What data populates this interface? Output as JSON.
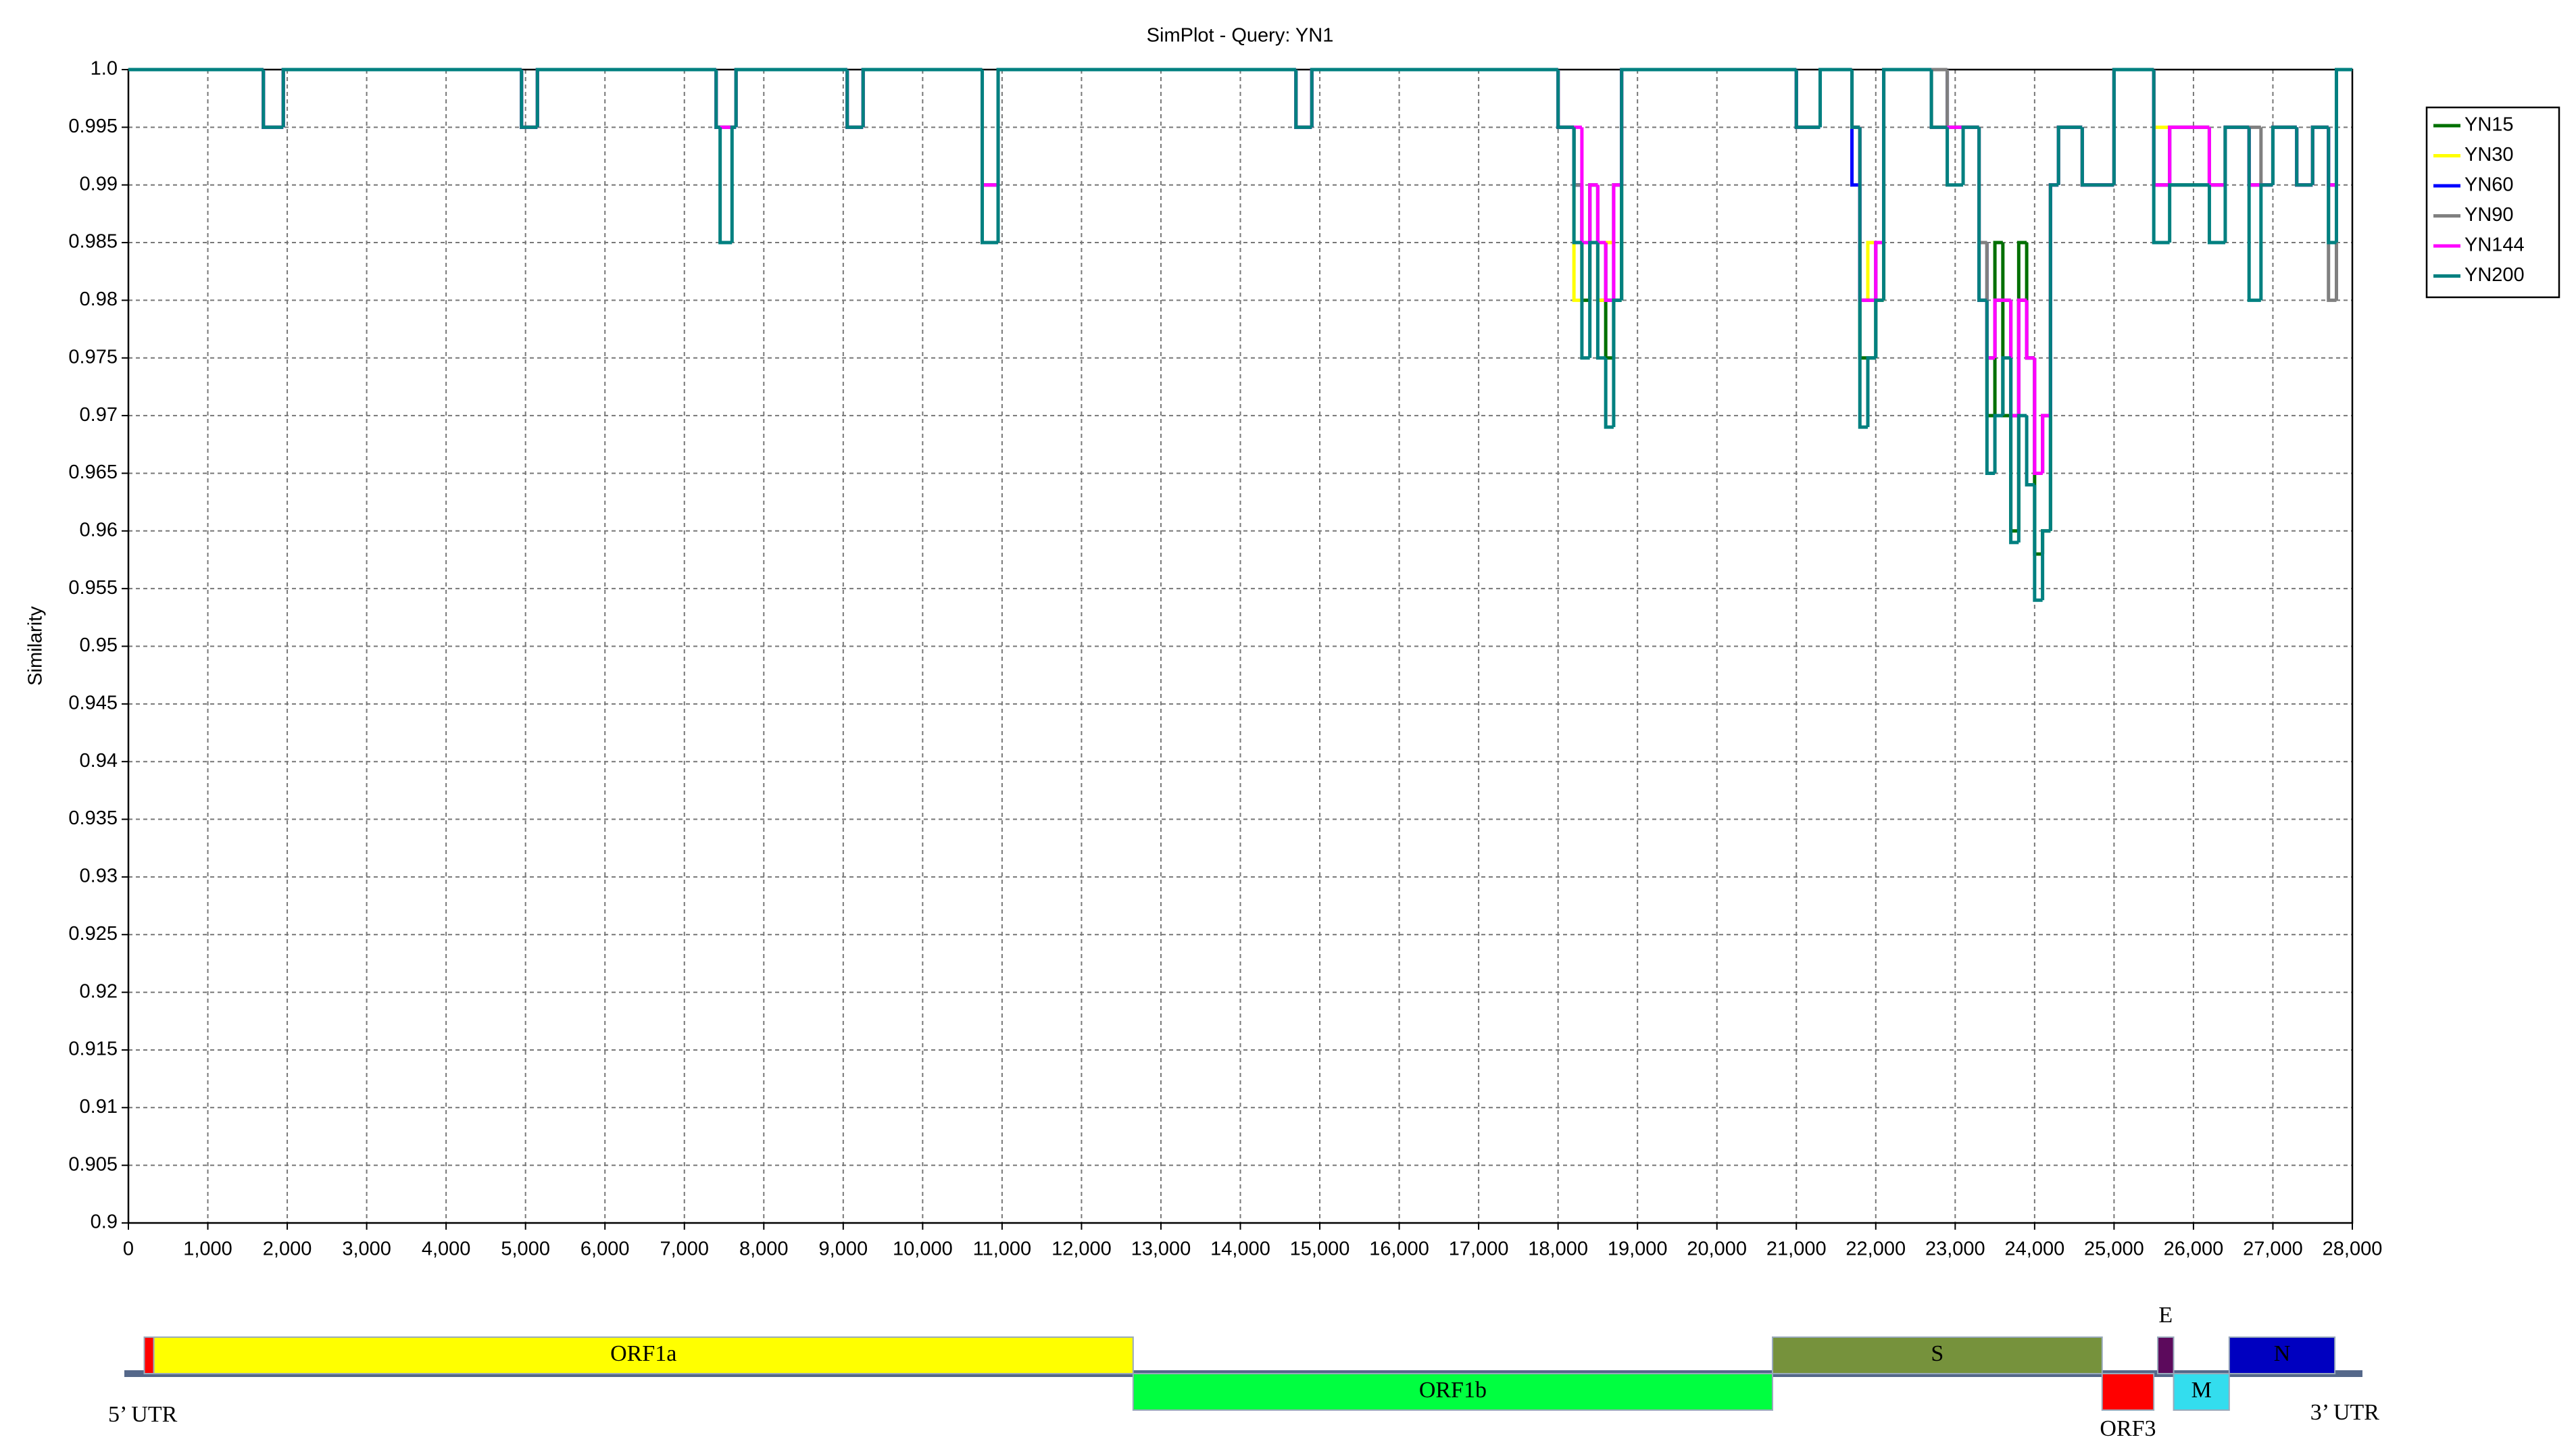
{
  "chart_data": {
    "type": "line",
    "step": true,
    "title": "SimPlot - Query: YN1",
    "y_label": "Similarity",
    "x": [
      0,
      1700,
      1950,
      4950,
      5150,
      7400,
      7450,
      7600,
      7650,
      9050,
      9250,
      10750,
      10950,
      14700,
      14900,
      18000,
      18200,
      18300,
      18400,
      18500,
      18600,
      18700,
      18800,
      21000,
      21300,
      21700,
      21800,
      21900,
      22000,
      22100,
      22700,
      22900,
      23100,
      23300,
      23400,
      23500,
      23600,
      23700,
      23800,
      23900,
      24000,
      24100,
      24200,
      24300,
      24600,
      25000,
      25500,
      25700,
      26200,
      26400,
      26700,
      26850,
      27000,
      27300,
      27500,
      27700,
      27800,
      28000
    ],
    "series": [
      {
        "name": "YN15",
        "color": "#007000",
        "values": [
          1,
          0.995,
          1,
          0.995,
          1,
          0.995,
          0.995,
          0.995,
          1,
          0.995,
          1,
          0.985,
          1,
          0.995,
          1,
          0.995,
          0.99,
          0.98,
          0.985,
          0.98,
          0.975,
          0.98,
          1,
          0.995,
          1,
          0.995,
          0.975,
          0.975,
          0.98,
          1,
          0.995,
          0.995,
          0.995,
          0.98,
          0.97,
          0.985,
          0.97,
          0.96,
          0.985,
          0.975,
          0.958,
          0.96,
          0.99,
          0.995,
          0.99,
          1,
          0.99,
          0.99,
          0.99,
          0.995,
          0.99,
          0.99,
          0.995,
          0.99,
          0.995,
          0.99,
          1,
          1
        ]
      },
      {
        "name": "YN30",
        "color": "#ffff00",
        "values": [
          1,
          0.995,
          1,
          0.995,
          1,
          0.995,
          0.995,
          0.995,
          1,
          0.995,
          1,
          0.99,
          1,
          0.995,
          1,
          0.995,
          0.98,
          0.985,
          0.99,
          0.98,
          0.985,
          0.99,
          1,
          0.995,
          1,
          0.995,
          0.98,
          0.985,
          0.98,
          1,
          0.995,
          0.995,
          0.995,
          0.985,
          0.975,
          0.98,
          0.98,
          0.97,
          0.98,
          0.975,
          0.965,
          0.97,
          0.99,
          0.995,
          0.99,
          1,
          0.995,
          0.995,
          0.99,
          0.995,
          0.99,
          0.99,
          0.995,
          0.99,
          0.995,
          0.99,
          1,
          1
        ]
      },
      {
        "name": "YN60",
        "color": "#0000ff",
        "values": [
          1,
          0.995,
          1,
          0.995,
          1,
          0.995,
          0.995,
          0.995,
          1,
          0.995,
          1,
          0.99,
          1,
          0.995,
          1,
          0.995,
          0.99,
          0.985,
          0.99,
          0.985,
          0.98,
          0.99,
          1,
          0.995,
          1,
          0.99,
          0.98,
          0.98,
          0.985,
          1,
          1,
          0.995,
          0.995,
          0.985,
          0.975,
          0.98,
          0.98,
          0.97,
          0.98,
          0.975,
          0.965,
          0.97,
          0.99,
          0.995,
          0.99,
          1,
          0.99,
          0.995,
          0.99,
          0.995,
          0.99,
          0.99,
          0.995,
          0.99,
          0.995,
          0.99,
          1,
          1
        ]
      },
      {
        "name": "YN90",
        "color": "#808080",
        "values": [
          1,
          0.995,
          1,
          0.995,
          1,
          0.995,
          0.995,
          0.995,
          1,
          0.995,
          1,
          0.99,
          1,
          0.995,
          1,
          0.995,
          0.99,
          0.985,
          0.99,
          0.985,
          0.98,
          0.99,
          1,
          0.995,
          1,
          0.995,
          0.98,
          0.98,
          0.985,
          1,
          1,
          0.995,
          0.995,
          0.985,
          0.975,
          0.98,
          0.98,
          0.97,
          0.98,
          0.975,
          0.965,
          0.97,
          0.99,
          0.995,
          0.99,
          1,
          0.99,
          0.995,
          0.99,
          0.995,
          0.995,
          0.99,
          0.995,
          0.99,
          0.995,
          0.98,
          1,
          1
        ]
      },
      {
        "name": "YN144",
        "color": "#ff00ff",
        "values": [
          1,
          0.995,
          1,
          0.995,
          1,
          0.995,
          0.995,
          0.995,
          1,
          0.995,
          1,
          0.99,
          1,
          0.995,
          1,
          0.995,
          0.995,
          0.985,
          0.99,
          0.985,
          0.98,
          0.99,
          1,
          0.995,
          1,
          0.995,
          0.98,
          0.98,
          0.985,
          1,
          0.995,
          0.995,
          0.995,
          0.98,
          0.975,
          0.98,
          0.98,
          0.97,
          0.98,
          0.975,
          0.965,
          0.97,
          0.99,
          0.995,
          0.99,
          1,
          0.99,
          0.995,
          0.99,
          0.995,
          0.99,
          0.99,
          0.995,
          0.99,
          0.995,
          0.99,
          1,
          1
        ]
      },
      {
        "name": "YN200",
        "color": "#008080",
        "values": [
          1,
          0.995,
          1,
          0.995,
          1,
          0.995,
          0.985,
          0.995,
          1,
          0.995,
          1,
          0.985,
          1,
          0.995,
          1,
          0.995,
          0.985,
          0.975,
          0.985,
          0.975,
          0.969,
          0.98,
          1,
          0.995,
          1,
          0.995,
          0.969,
          0.975,
          0.98,
          1,
          0.995,
          0.99,
          0.995,
          0.98,
          0.965,
          0.97,
          0.975,
          0.959,
          0.97,
          0.964,
          0.954,
          0.96,
          0.99,
          0.995,
          0.99,
          1,
          0.985,
          0.99,
          0.985,
          0.995,
          0.98,
          0.99,
          0.995,
          0.99,
          0.995,
          0.985,
          1,
          1
        ]
      }
    ],
    "xlim": [
      0,
      28000
    ],
    "xticks": [
      0,
      {
        "value": 1000,
        "label": "1,000"
      },
      {
        "value": 2000,
        "label": "2,000"
      },
      {
        "value": 3000,
        "label": "3,000"
      },
      {
        "value": 4000,
        "label": "4,000"
      },
      {
        "value": 5000,
        "label": "5,000"
      },
      {
        "value": 6000,
        "label": "6,000"
      },
      {
        "value": 7000,
        "label": "7,000"
      },
      {
        "value": 8000,
        "label": "8,000"
      },
      {
        "value": 9000,
        "label": "9,000"
      },
      {
        "value": 10000,
        "label": "10,000"
      },
      {
        "value": 11000,
        "label": "11,000"
      },
      {
        "value": 12000,
        "label": "12,000"
      },
      {
        "value": 13000,
        "label": "13,000"
      },
      {
        "value": 14000,
        "label": "14,000"
      },
      {
        "value": 15000,
        "label": "15,000"
      },
      {
        "value": 16000,
        "label": "16,000"
      },
      {
        "value": 17000,
        "label": "17,000"
      },
      {
        "value": 18000,
        "label": "18,000"
      },
      {
        "value": 19000,
        "label": "19,000"
      },
      {
        "value": 20000,
        "label": "20,000"
      },
      {
        "value": 21000,
        "label": "21,000"
      },
      {
        "value": 22000,
        "label": "22,000"
      },
      {
        "value": 23000,
        "label": "23,000"
      },
      {
        "value": 24000,
        "label": "24,000"
      },
      {
        "value": 25000,
        "label": "25,000"
      },
      {
        "value": 26000,
        "label": "26,000"
      },
      {
        "value": 27000,
        "label": "27,000"
      },
      {
        "value": 28000,
        "label": "28,000"
      }
    ],
    "ylim": [
      0.9,
      1
    ],
    "yticks": [
      0.9,
      0.905,
      0.91,
      0.915,
      0.92,
      0.925,
      0.93,
      0.935,
      0.94,
      0.945,
      0.95,
      0.955,
      0.96,
      0.965,
      0.97,
      0.975,
      0.98,
      0.985,
      0.99,
      0.995,
      {
        "value": 1,
        "label": "1.0"
      }
    ],
    "grid": true,
    "legend": "right",
    "genome_map": {
      "left_label": "5’ UTR",
      "right_label": "3’ UTR",
      "upper_track": [
        {
          "start": 200,
          "end": 320,
          "color": "#ff0000"
        },
        {
          "name": "ORF1a",
          "start": 320,
          "end": 12650,
          "color": "#ffff00"
        },
        {
          "name": "S",
          "start": 20700,
          "end": 24850,
          "color": "#76923c"
        },
        {
          "name": "E",
          "start": 25550,
          "end": 25750,
          "color": "#5c0a5c"
        },
        {
          "name": "N",
          "start": 26450,
          "end": 27780,
          "color": "#0000c0"
        }
      ],
      "lower_track": [
        {
          "name": "ORF1b",
          "start": 12650,
          "end": 20700,
          "color": "#00ff40"
        },
        {
          "name": "ORF3",
          "start": 24850,
          "end": 25500,
          "color": "#ff0000"
        },
        {
          "name": "M",
          "start": 25750,
          "end": 26450,
          "color": "#33ddee"
        }
      ]
    }
  }
}
